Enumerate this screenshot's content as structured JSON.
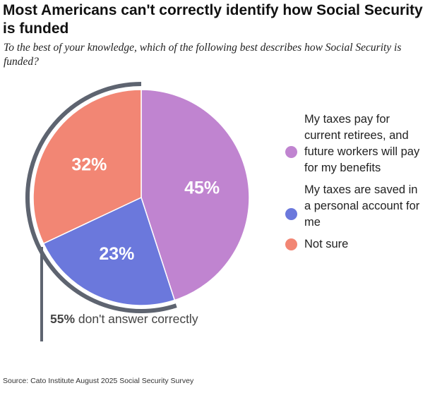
{
  "title": "Most Americans can't correctly identify how Social Security is funded",
  "subtitle": "To the best of your knowledge, which of the following best describes how Social Security is funded?",
  "chart_data": {
    "type": "pie",
    "slices": [
      {
        "label": "My taxes pay for current retirees, and future workers will pay for my benefits",
        "value": 45,
        "display": "45%",
        "color": "#c084d0"
      },
      {
        "label": "My taxes are saved in a personal account for me",
        "value": 23,
        "display": "23%",
        "color": "#6b78dc"
      },
      {
        "label": "Not sure",
        "value": 32,
        "display": "32%",
        "color": "#f28674"
      }
    ],
    "annotation": {
      "value": "55%",
      "text": "don't answer correctly"
    },
    "legend_position": "right"
  },
  "source": "Source: Cato Institute August 2025 Social Security Survey",
  "colors": {
    "bracket": "#5e6470",
    "text": "#222222"
  }
}
